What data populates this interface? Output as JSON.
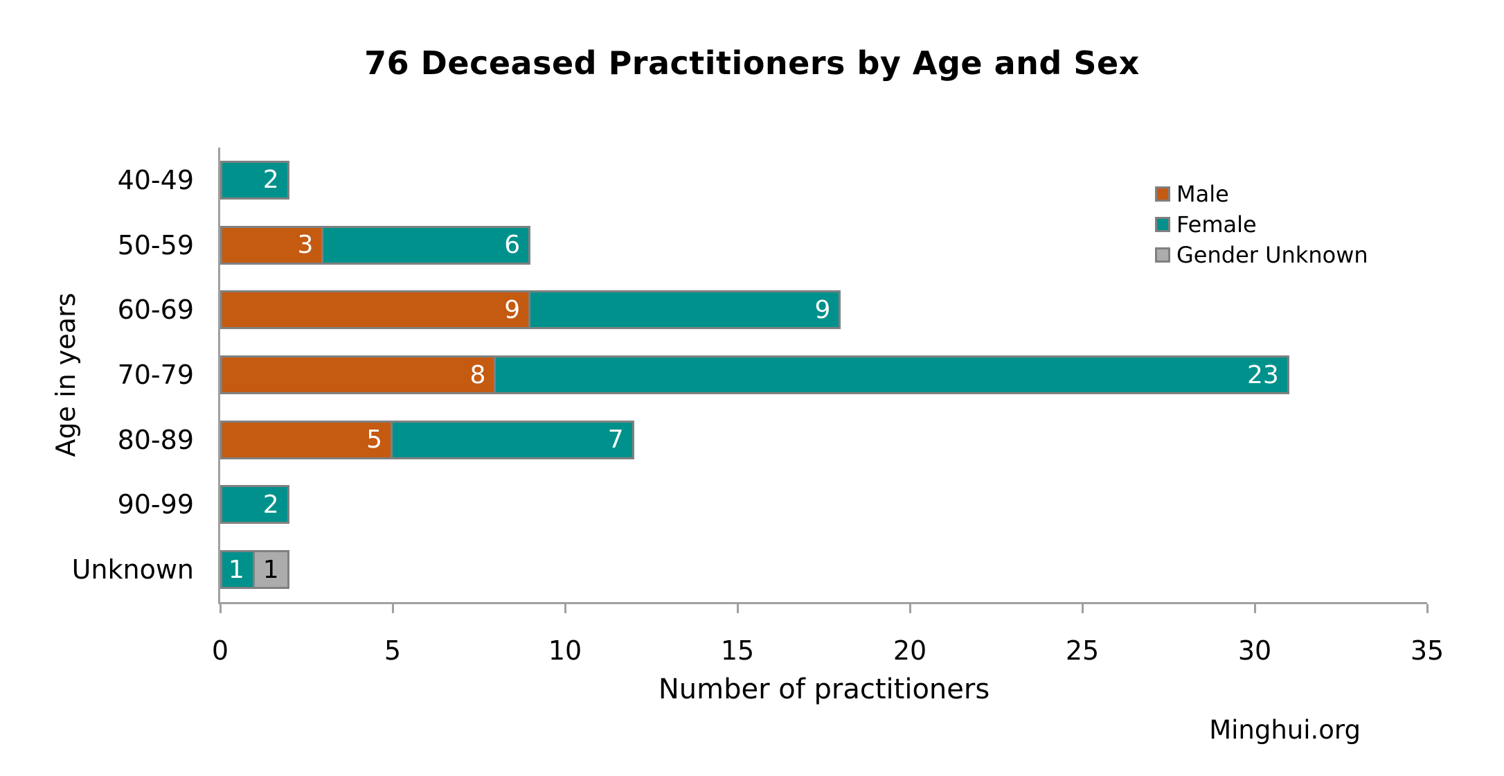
{
  "footer": {
    "watermark": "Minghui.org"
  },
  "chart_data": {
    "type": "bar",
    "orientation": "horizontal",
    "stacked": true,
    "title": "76 Deceased Practitioners by Age and Sex",
    "xlabel": "Number of practitioners",
    "ylabel": "Age in years",
    "xlim": [
      0,
      35
    ],
    "xticks": [
      0,
      5,
      10,
      15,
      20,
      25,
      30,
      35
    ],
    "grid": false,
    "legend_position": "upper right",
    "categories": [
      "40-49",
      "50-59",
      "60-69",
      "70-79",
      "80-89",
      "90-99",
      "Unknown"
    ],
    "series": [
      {
        "name": "Male",
        "color": "#C55A11",
        "label_color": "#ffffff",
        "values": [
          0,
          3,
          9,
          8,
          5,
          0,
          0
        ]
      },
      {
        "name": "Female",
        "color": "#00918C",
        "label_color": "#ffffff",
        "values": [
          2,
          6,
          9,
          23,
          7,
          2,
          1
        ]
      },
      {
        "name": "Gender Unknown",
        "color": "#ACACAC",
        "label_color": "#000000",
        "values": [
          0,
          0,
          0,
          0,
          0,
          0,
          1
        ]
      }
    ],
    "bar_border_color": "#808080",
    "axis_color": "#a0a0a0"
  }
}
